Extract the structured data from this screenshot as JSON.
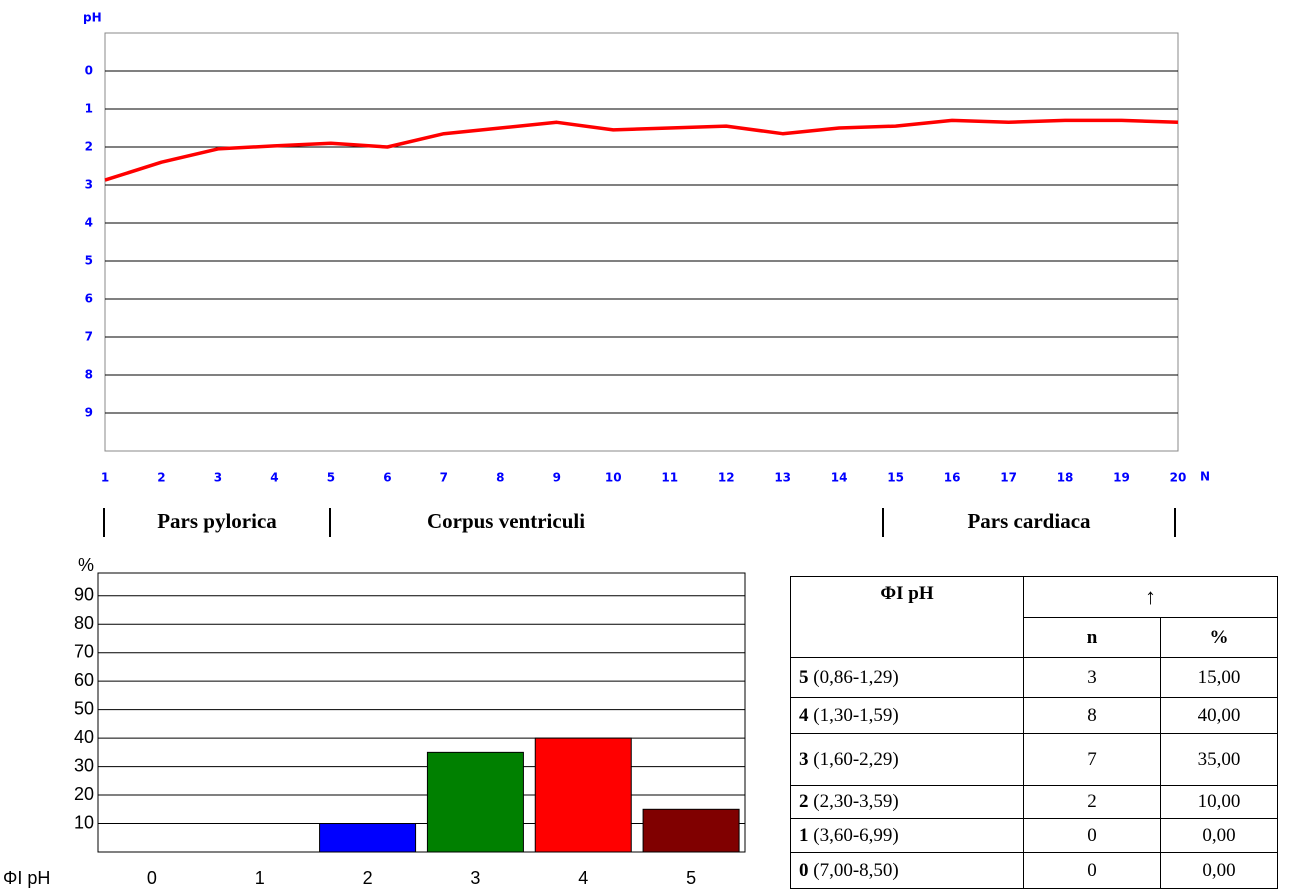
{
  "chart_data": [
    {
      "type": "line",
      "y_label": "pH",
      "x_label": "N",
      "x": [
        1,
        2,
        3,
        4,
        5,
        6,
        7,
        8,
        9,
        10,
        11,
        12,
        13,
        14,
        15,
        16,
        17,
        18,
        19,
        20
      ],
      "series": [
        {
          "color": "#ff0000",
          "values": [
            2.87,
            2.4,
            2.05,
            1.97,
            1.9,
            2.0,
            1.65,
            1.5,
            1.35,
            1.55,
            1.5,
            1.45,
            1.65,
            1.5,
            1.45,
            1.3,
            1.35,
            1.3,
            1.3,
            1.35
          ]
        }
      ],
      "xlim": [
        1,
        20
      ],
      "xticks": [
        1,
        2,
        3,
        4,
        5,
        6,
        7,
        8,
        9,
        10,
        11,
        12,
        13,
        14,
        15,
        16,
        17,
        18,
        19,
        20
      ],
      "ylim": [
        -1,
        10
      ],
      "yticks": [
        0,
        1,
        2,
        3,
        4,
        5,
        6,
        7,
        8,
        9
      ],
      "y_inverted": true,
      "grid": true,
      "regions": [
        "Pars pylorica",
        "Corpus ventriculi",
        "Pars cardiaca"
      ]
    },
    {
      "type": "bar",
      "y_label": "%",
      "x_label": "ΦI pH",
      "categories": [
        "0",
        "1",
        "2",
        "3",
        "4",
        "5"
      ],
      "values": [
        0,
        0,
        10,
        35,
        40,
        15
      ],
      "colors": [
        null,
        null,
        "#0000ff",
        "#008000",
        "#ff0000",
        "#800000"
      ],
      "ylim": [
        0,
        98
      ],
      "yticks": [
        10,
        20,
        30,
        40,
        50,
        60,
        70,
        80,
        90
      ],
      "grid": true
    }
  ],
  "table": {
    "header": [
      "ΦI pH",
      "↑"
    ],
    "subheader": [
      "n",
      "%"
    ],
    "rows": [
      {
        "level": "5",
        "range": "(0,86-1,29)",
        "n": "3",
        "pct": "15,00"
      },
      {
        "level": "4",
        "range": "(1,30-1,59)",
        "n": "8",
        "pct": "40,00"
      },
      {
        "level": "3",
        "range": "(1,60-2,29)",
        "n": "7",
        "pct": "35,00"
      },
      {
        "level": "2",
        "range": "(2,30-3,59)",
        "n": "2",
        "pct": "10,00"
      },
      {
        "level": "1",
        "range": "(3,60-6,99)",
        "n": "0",
        "pct": "0,00"
      },
      {
        "level": "0",
        "range": "(7,00-8,50)",
        "n": "0",
        "pct": "0,00"
      }
    ]
  }
}
